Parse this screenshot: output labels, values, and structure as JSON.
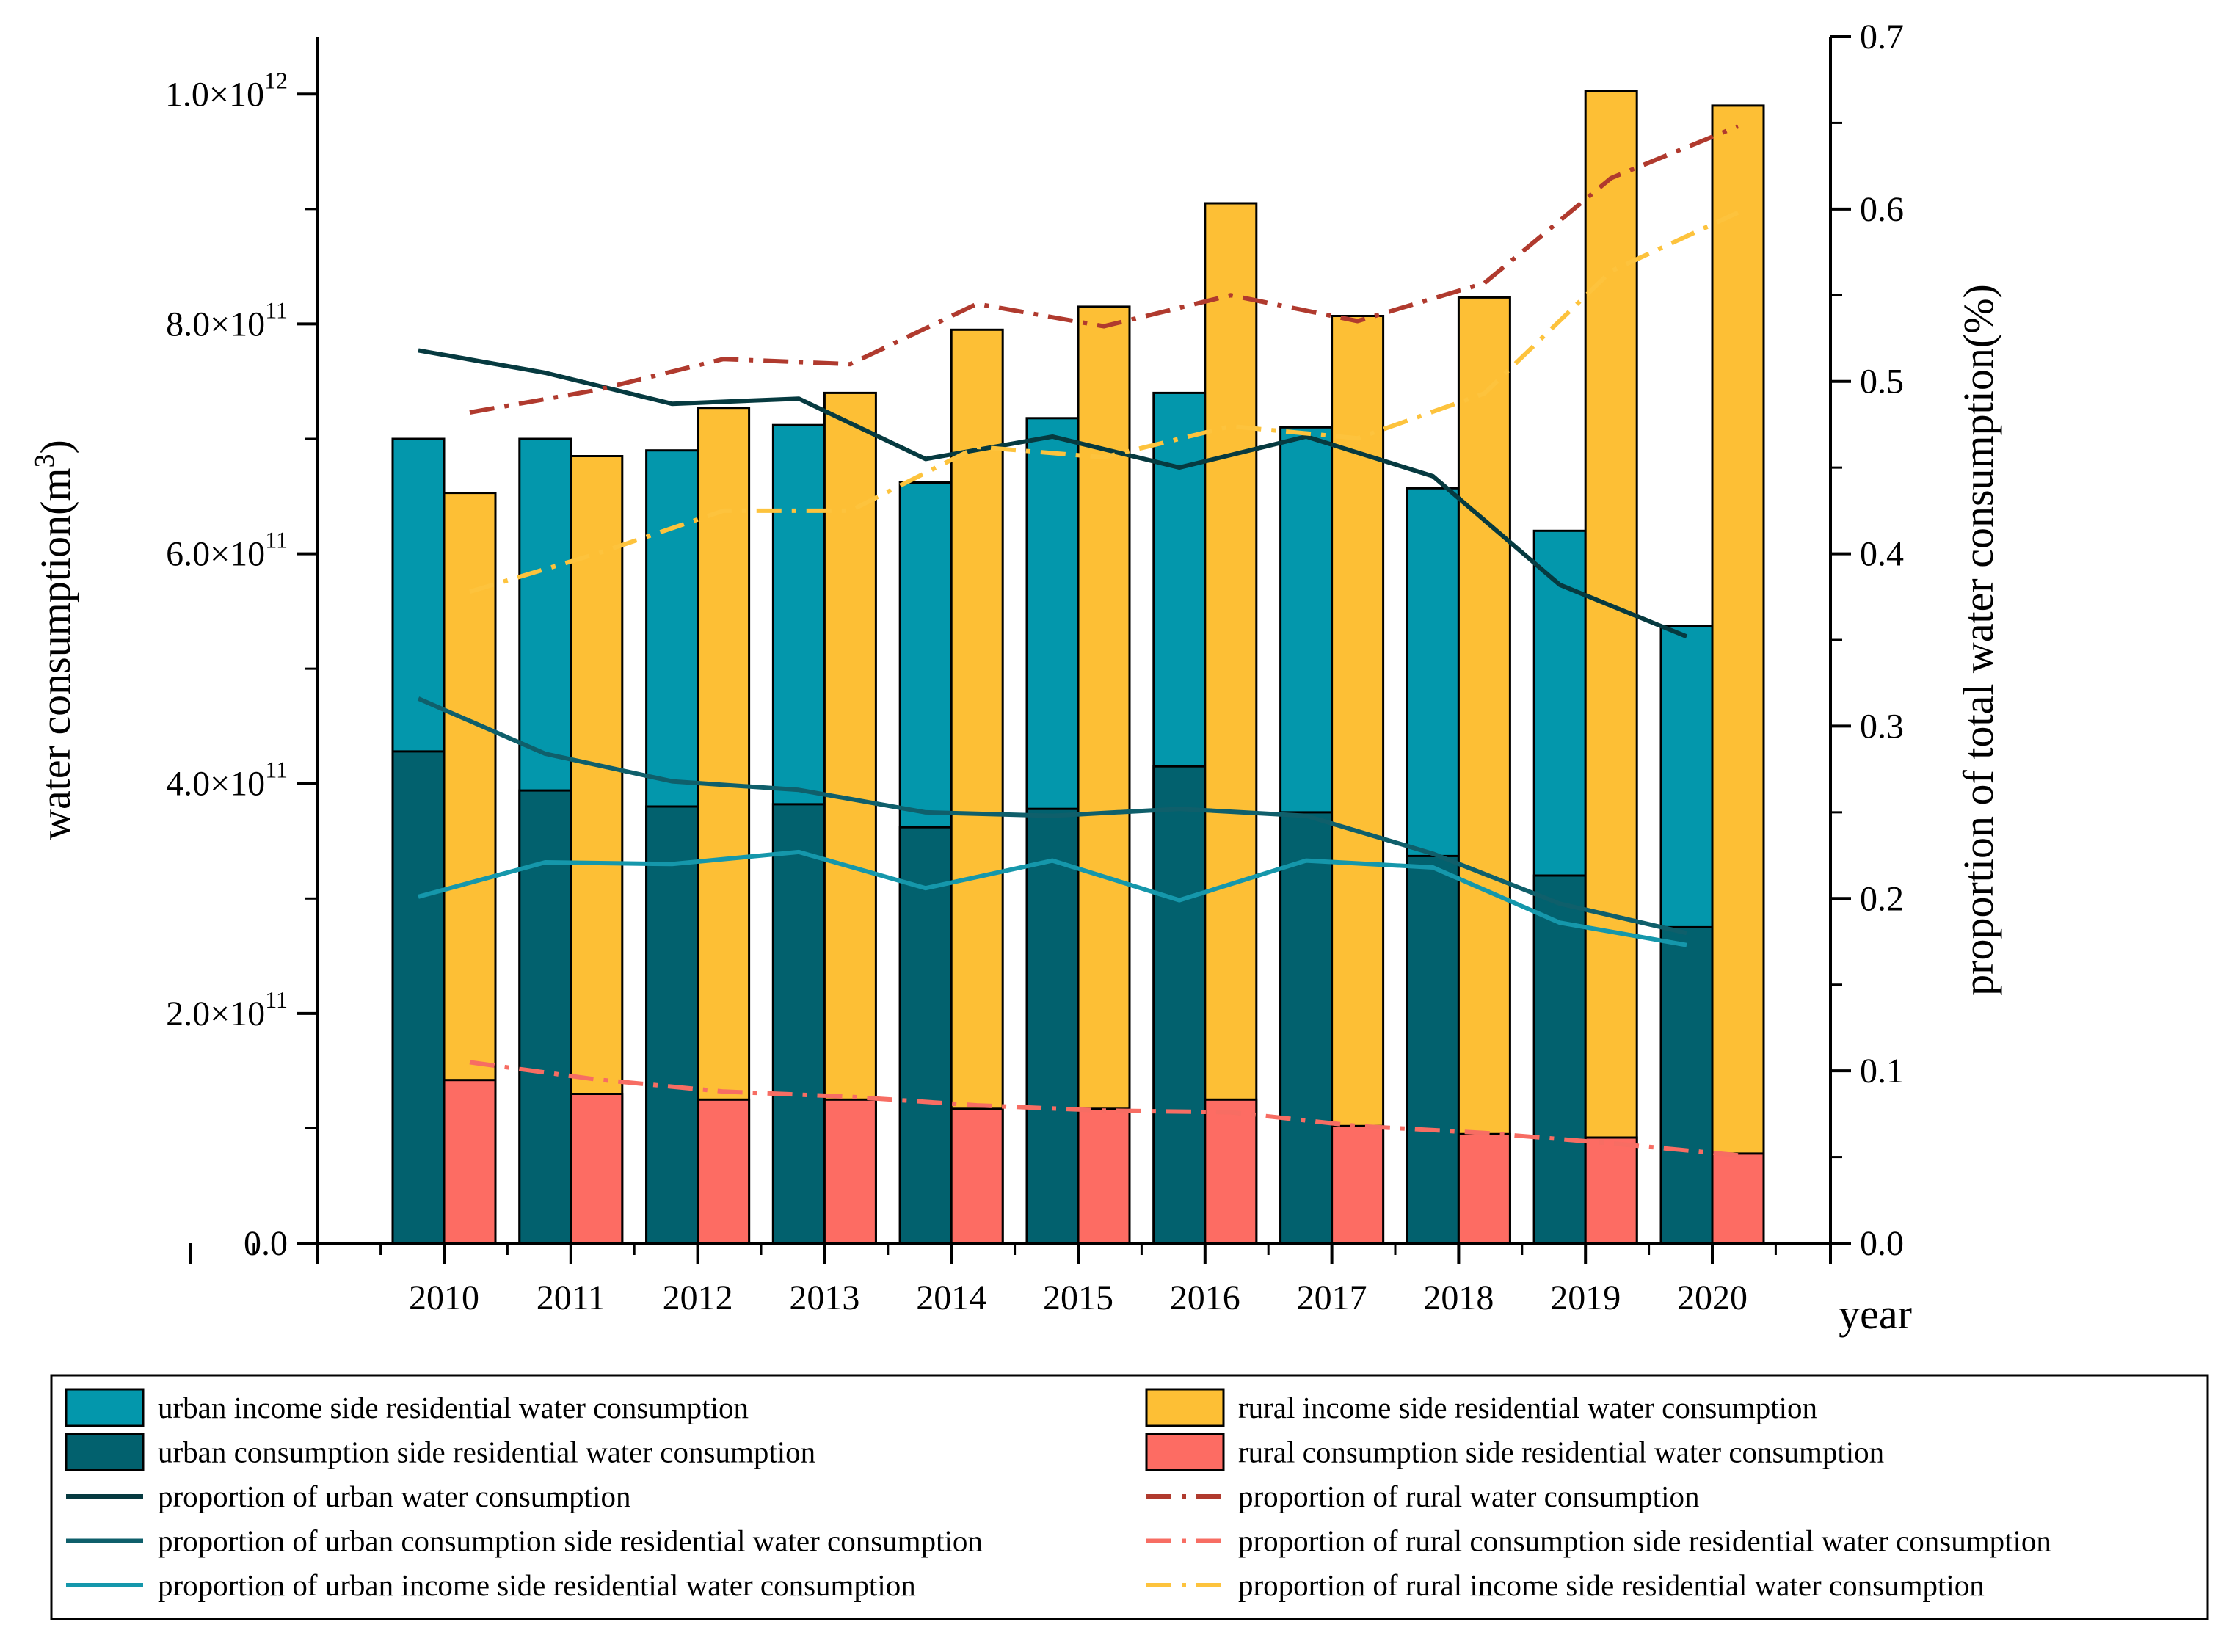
{
  "chart_data": {
    "type": "bar",
    "categories": [
      "2010",
      "2011",
      "2012",
      "2013",
      "2014",
      "2015",
      "2016",
      "2017",
      "2018",
      "2019",
      "2020"
    ],
    "xlabel": "year",
    "ylabel": "water consumption(m",
    "ylabel_sup": "3",
    "ylabel_end": ")",
    "y2label": "proportion of total water consumption(%)",
    "ylim": [
      0,
      1050000000000.0
    ],
    "y2lim": [
      0,
      0.7
    ],
    "yticks": [
      {
        "value": 0,
        "mant": "0.0",
        "exp": ""
      },
      {
        "value": 200000000000.0,
        "mant": "2.0×10",
        "exp": "11"
      },
      {
        "value": 400000000000.0,
        "mant": "4.0×10",
        "exp": "11"
      },
      {
        "value": 600000000000.0,
        "mant": "6.0×10",
        "exp": "11"
      },
      {
        "value": 800000000000.0,
        "mant": "8.0×10",
        "exp": "11"
      },
      {
        "value": 1000000000000.0,
        "mant": "1.0×10",
        "exp": "12"
      }
    ],
    "y2ticks": [
      "0.0",
      "0.1",
      "0.2",
      "0.3",
      "0.4",
      "0.5",
      "0.6",
      "0.7"
    ],
    "bars": [
      {
        "name": "urban income side residential water consumption",
        "color": "#0397AC",
        "group": "urban",
        "layer": "total",
        "values": [
          700000000000.0,
          700000000000.0,
          690000000000.0,
          712000000000.0,
          662000000000.0,
          718000000000.0,
          740000000000.0,
          710000000000.0,
          657000000000.0,
          620000000000.0,
          537000000000.0
        ]
      },
      {
        "name": "urban consumption side residential water consumption",
        "color": "#02616E",
        "group": "urban",
        "layer": "part",
        "values": [
          428000000000.0,
          394000000000.0,
          380000000000.0,
          382000000000.0,
          362000000000.0,
          378000000000.0,
          415000000000.0,
          375000000000.0,
          337000000000.0,
          320000000000.0,
          275000000000.0
        ]
      },
      {
        "name": "rural income side residential water consumption",
        "color": "#FDBF35",
        "group": "rural",
        "layer": "total",
        "values": [
          653000000000.0,
          685000000000.0,
          727000000000.0,
          740000000000.0,
          795000000000.0,
          815000000000.0,
          905000000000.0,
          807000000000.0,
          823000000000.0,
          1003000000000.0,
          990000000000.0
        ]
      },
      {
        "name": "rural consumption side residential water consumption",
        "color": "#FD6C63",
        "group": "rural",
        "layer": "part",
        "values": [
          142000000000.0,
          130000000000.0,
          125000000000.0,
          125000000000.0,
          117000000000.0,
          117000000000.0,
          125000000000.0,
          102000000000.0,
          95000000000.0,
          92000000000.0,
          78000000000.0
        ]
      }
    ],
    "lines": [
      {
        "name": "proportion of urban water consumption",
        "color": "#063A40",
        "dash": "solid",
        "anchor": "urban",
        "values": [
          0.518,
          0.505,
          0.487,
          0.49,
          0.455,
          0.468,
          0.45,
          0.468,
          0.445,
          0.382,
          0.352
        ]
      },
      {
        "name": "proportion of rural water consumption",
        "color": "#B03A2E",
        "dash": "dashdot",
        "anchor": "rural",
        "values": [
          0.482,
          0.495,
          0.513,
          0.51,
          0.545,
          0.532,
          0.55,
          0.535,
          0.557,
          0.618,
          0.648
        ]
      },
      {
        "name": "proportion of urban consumption side residential water consumption",
        "color": "#0F5F6B",
        "dash": "solid",
        "anchor": "urban",
        "values": [
          0.316,
          0.284,
          0.268,
          0.263,
          0.25,
          0.248,
          0.252,
          0.248,
          0.226,
          0.197,
          0.18
        ]
      },
      {
        "name": "proportion of rural consumption side residential water consumption",
        "color": "#F76D63",
        "dash": "dashdot",
        "anchor": "rural",
        "values": [
          0.105,
          0.095,
          0.088,
          0.085,
          0.08,
          0.077,
          0.076,
          0.068,
          0.064,
          0.058,
          0.051
        ]
      },
      {
        "name": "proportion of urban income side residential water consumption",
        "color": "#1597AB",
        "dash": "solid",
        "anchor": "urban",
        "values": [
          0.201,
          0.221,
          0.22,
          0.227,
          0.206,
          0.222,
          0.199,
          0.222,
          0.218,
          0.186,
          0.173
        ]
      },
      {
        "name": "proportion of rural income side residential water consumption",
        "color": "#FDC33D",
        "dash": "dashdot",
        "anchor": "rural",
        "values": [
          0.378,
          0.4,
          0.425,
          0.425,
          0.462,
          0.456,
          0.474,
          0.467,
          0.493,
          0.564,
          0.598
        ]
      }
    ],
    "legend": {
      "position": "bottom",
      "items": [
        {
          "label": "urban income side residential water consumption",
          "kind": "box",
          "color": "#0397AC"
        },
        {
          "label": "rural income side residential water consumption",
          "kind": "box",
          "color": "#FDBF35"
        },
        {
          "label": "urban consumption side residential water consumption",
          "kind": "box",
          "color": "#02616E"
        },
        {
          "label": "rural consumption side residential water consumption",
          "kind": "box",
          "color": "#FD6C63"
        },
        {
          "label": "proportion of urban water consumption",
          "kind": "line",
          "color": "#063A40",
          "dash": "solid"
        },
        {
          "label": "proportion of rural water consumption",
          "kind": "line",
          "color": "#B03A2E",
          "dash": "dashdot"
        },
        {
          "label": "proportion of urban consumption side residential water consumption",
          "kind": "line",
          "color": "#0F5F6B",
          "dash": "solid"
        },
        {
          "label": "proportion of rural consumption side residential water consumption",
          "kind": "line",
          "color": "#F76D63",
          "dash": "dashdot"
        },
        {
          "label": "proportion of urban income side residential water consumption",
          "kind": "line",
          "color": "#1597AB",
          "dash": "solid"
        },
        {
          "label": "proportion of rural income side residential water consumption",
          "kind": "line",
          "color": "#FDC33D",
          "dash": "dashdot"
        }
      ]
    }
  }
}
